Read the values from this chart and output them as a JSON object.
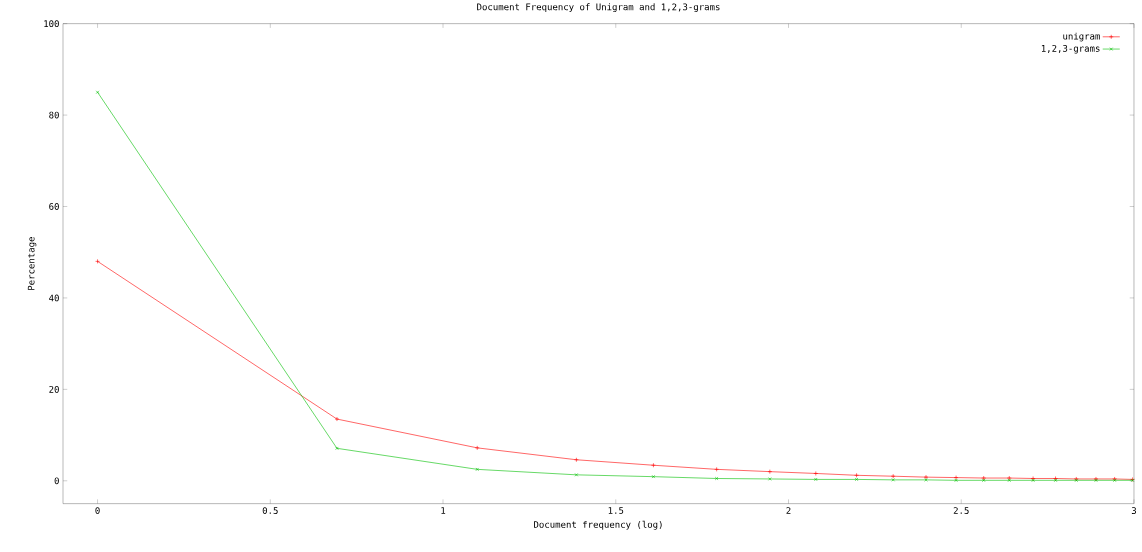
{
  "chart_data": {
    "type": "line",
    "title": "Document Frequency of Unigram and 1,2,3-grams",
    "xlabel": "Document frequency (log)",
    "ylabel": "Percentage",
    "x": [
      0,
      0.693,
      1.099,
      1.386,
      1.609,
      1.792,
      1.946,
      2.079,
      2.197,
      2.303,
      2.398,
      2.485,
      2.565,
      2.639,
      2.708,
      2.773,
      2.833,
      2.89,
      2.944,
      2.996
    ],
    "series": [
      {
        "name": "unigram",
        "color": "#ff0000",
        "values": [
          48,
          13.5,
          7.2,
          4.6,
          3.4,
          2.5,
          2.0,
          1.6,
          1.2,
          1.0,
          0.8,
          0.7,
          0.6,
          0.6,
          0.5,
          0.5,
          0.4,
          0.4,
          0.4,
          0.3
        ]
      },
      {
        "name": "1,2,3-grams",
        "color": "#00c000",
        "values": [
          85,
          7.1,
          2.5,
          1.3,
          0.9,
          0.5,
          0.4,
          0.3,
          0.3,
          0.2,
          0.2,
          0.1,
          0.1,
          0.1,
          0.1,
          0.1,
          0.1,
          0.1,
          0.1,
          0.1
        ]
      }
    ],
    "xlim": [
      -0.1,
      3
    ],
    "ylim": [
      -5,
      100
    ],
    "xticks": [
      0,
      0.5,
      1,
      1.5,
      2,
      2.5,
      3
    ],
    "yticks": [
      0,
      20,
      40,
      60,
      80,
      100
    ],
    "grid": false,
    "legend": "top right",
    "marker": "cross",
    "line_style": "solid"
  }
}
